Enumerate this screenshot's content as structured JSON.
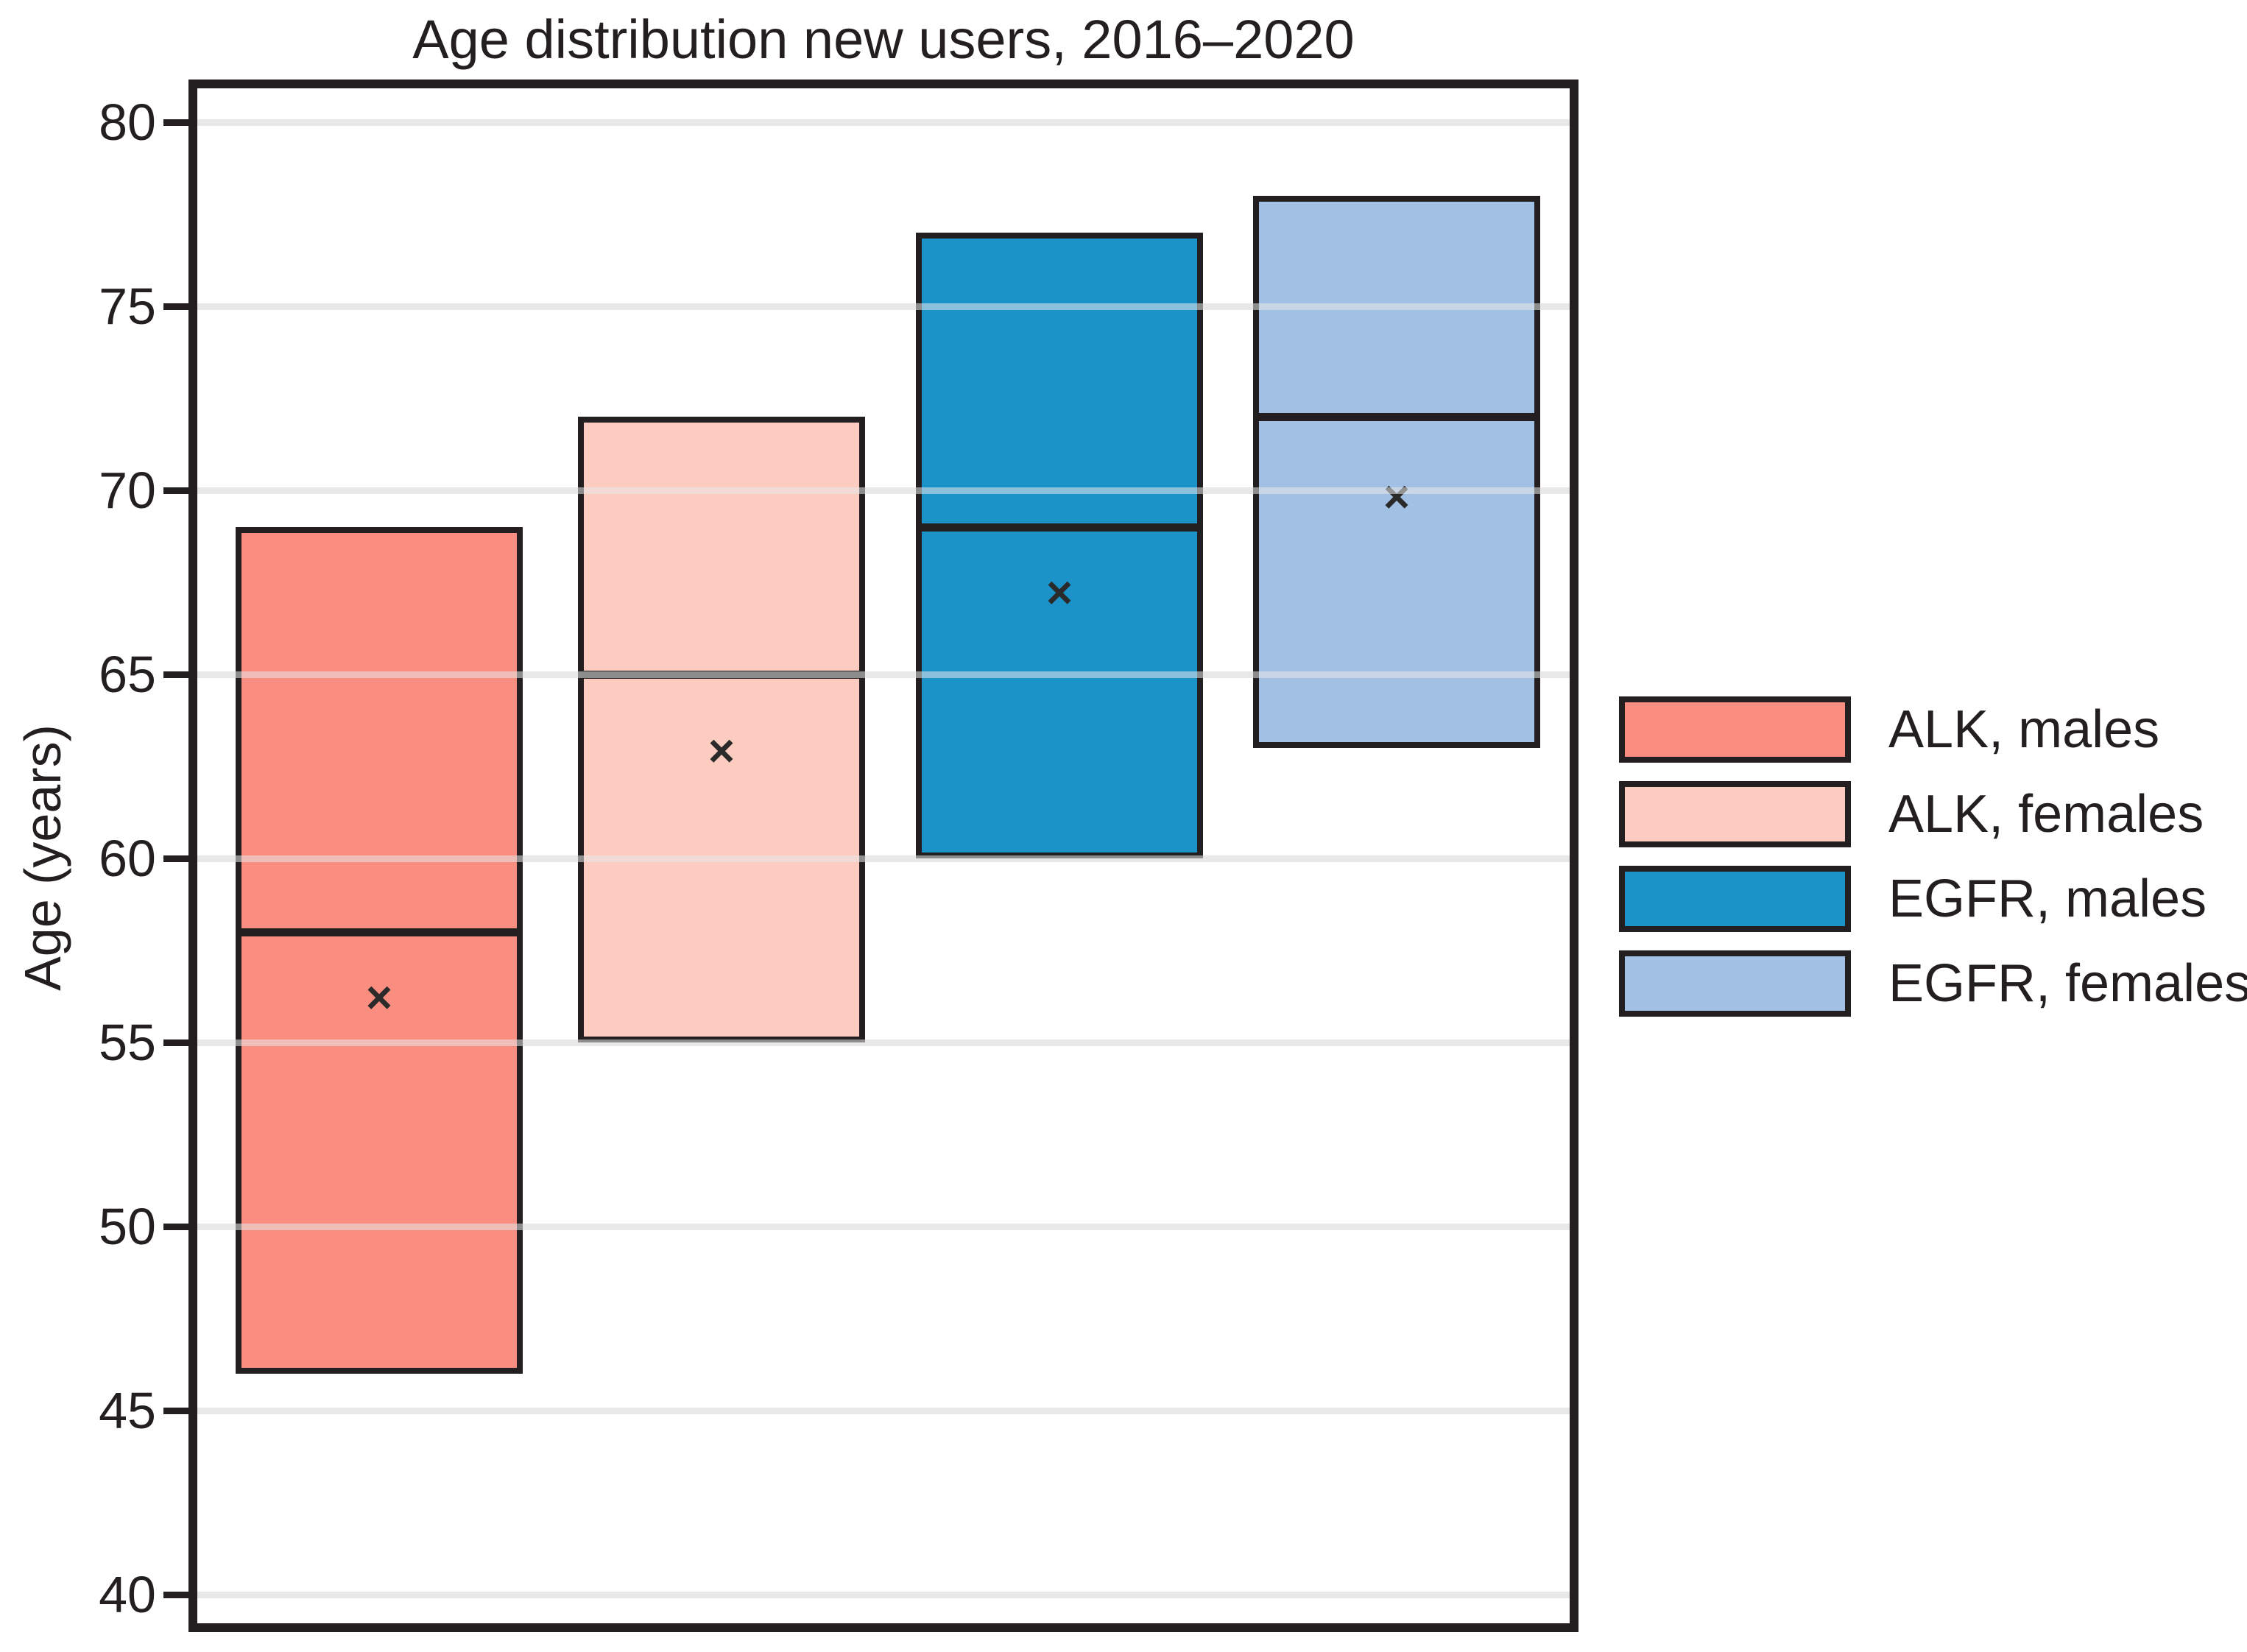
{
  "chart_data": {
    "type": "box",
    "title": "Age distribution new users, 2016–2020",
    "ylabel": "Age (years)",
    "xlabel": "",
    "ylim": [
      39,
      81
    ],
    "yticks": [
      80,
      75,
      70,
      65,
      60,
      55,
      50,
      45,
      40
    ],
    "grid": "horizontal",
    "legend_position": "right",
    "marker": "×",
    "marker_meaning": "mean",
    "series": [
      {
        "label": "ALK, males",
        "color": "#F98D80",
        "box_bottom": 46,
        "median": 58,
        "box_top": 69,
        "mean": 56.2
      },
      {
        "label": "ALK, females",
        "color": "#FCCCC0",
        "box_bottom": 55,
        "median": 65,
        "box_top": 72,
        "mean": 62.9
      },
      {
        "label": "EGFR, males",
        "color": "#1B93C9",
        "box_bottom": 60,
        "median": 69,
        "box_top": 77,
        "mean": 67.2
      },
      {
        "label": "EGFR, females",
        "color": "#A2C0E3",
        "box_bottom": 63,
        "median": 72,
        "box_top": 78,
        "mean": 69.8
      }
    ],
    "colors": {
      "axis": "#231F20",
      "gridline": "#E8E8E8",
      "background": "#FFFFFF"
    }
  }
}
